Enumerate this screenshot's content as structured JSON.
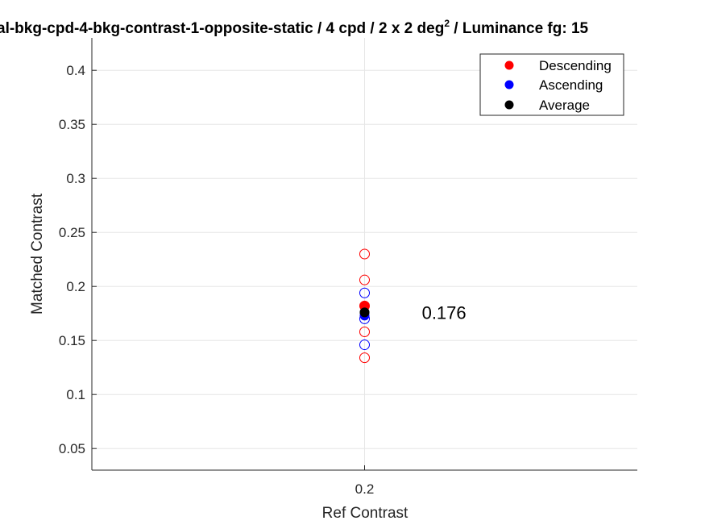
{
  "chart_data": {
    "type": "scatter",
    "title": "al-bkg-cpd-4-bkg-contrast-1-opposite-static / 4 cpd / 2 x 2 deg",
    "title_superscript": "2",
    "title_suffix": " / Luminance fg: 15",
    "xlabel": "Ref Contrast",
    "ylabel": "Matched Contrast",
    "x_tick_labels": [
      "0.2"
    ],
    "x_ticks": [
      0.2
    ],
    "xlim": [
      0.1,
      0.3
    ],
    "y_ticks": [
      0.05,
      0.1,
      0.15,
      0.2,
      0.25,
      0.3,
      0.35,
      0.4
    ],
    "y_tick_labels": [
      "0.05",
      "0.1",
      "0.15",
      "0.2",
      "0.25",
      "0.3",
      "0.35",
      "0.4"
    ],
    "ylim": [
      0.03,
      0.43
    ],
    "grid": true,
    "legend_position": "top-right",
    "legend": [
      "Descending",
      "Ascending",
      "Average"
    ],
    "series": [
      {
        "name": "Descending",
        "color": "#ff0000",
        "marker": "open-circle",
        "points": [
          [
            0.2,
            0.23
          ],
          [
            0.2,
            0.206
          ],
          [
            0.2,
            0.182
          ],
          [
            0.2,
            0.158
          ],
          [
            0.2,
            0.134
          ]
        ]
      },
      {
        "name": "Ascending",
        "color": "#0000ff",
        "marker": "open-circle",
        "points": [
          [
            0.2,
            0.194
          ],
          [
            0.2,
            0.17
          ],
          [
            0.2,
            0.146
          ]
        ]
      },
      {
        "name": "Average",
        "color": "#000000",
        "marker": "filled-circle",
        "points": [
          [
            0.2,
            0.176
          ]
        ]
      }
    ],
    "filled_points": [
      {
        "color": "#ff0000",
        "x": 0.2,
        "y": 0.182
      },
      {
        "color": "#0000ff",
        "x": 0.2,
        "y": 0.173
      }
    ],
    "annotation": {
      "text": "0.176",
      "x": 0.221,
      "y": 0.176
    }
  }
}
